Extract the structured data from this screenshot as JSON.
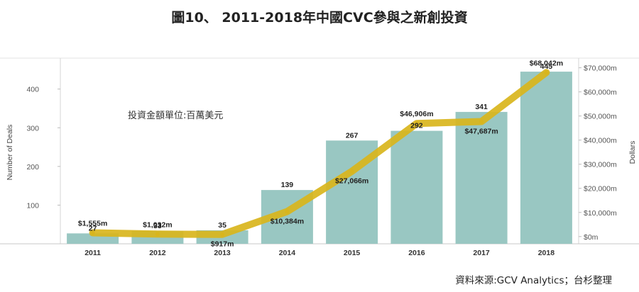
{
  "figure": {
    "title": "圖10、 2011-2018年中國CVC參與之新創投資",
    "source": "資料來源:GCV Analytics；台杉整理",
    "annotation": "投資金額單位:百萬美元"
  },
  "chart_data": {
    "type": "bar",
    "title": "圖10、 2011-2018年中國CVC參與之新創投資",
    "categories": [
      "2011",
      "2012",
      "2013",
      "2014",
      "2015",
      "2016",
      "2017",
      "2018"
    ],
    "series": [
      {
        "name": "Number of Deals",
        "type": "bar",
        "axis": "left",
        "values": [
          27,
          33,
          35,
          139,
          267,
          292,
          341,
          445
        ],
        "labels": [
          "27",
          "33",
          "35",
          "139",
          "267",
          "292",
          "341",
          "445"
        ],
        "color": "#99c7c2"
      },
      {
        "name": "Dollars",
        "type": "line",
        "axis": "right",
        "values": [
          1555,
          1032,
          917,
          10384,
          27066,
          46906,
          47687,
          68042
        ],
        "labels": [
          "$1,555m",
          "$1,032m",
          "$917m",
          "$10,384m",
          "$27,066m",
          "$46,906m",
          "$47,687m",
          "$68,042m"
        ],
        "color": "#d9b51c"
      }
    ],
    "y_left": {
      "label": "Number of Deals",
      "ticks": [
        100,
        200,
        300,
        400
      ],
      "tick_labels": [
        "100",
        "200",
        "300",
        "400"
      ],
      "range": [
        0,
        480
      ]
    },
    "y_right": {
      "label": "Dollars",
      "ticks": [
        0,
        10000,
        20000,
        30000,
        40000,
        50000,
        60000,
        70000
      ],
      "tick_labels": [
        "$0m",
        "$10,000m",
        "$20,000m",
        "$30,000m",
        "$40,000m",
        "$50,000m",
        "$60,000m",
        "$70,000m"
      ],
      "range": [
        -3000,
        74000
      ]
    },
    "grid": false,
    "legend": "none"
  }
}
